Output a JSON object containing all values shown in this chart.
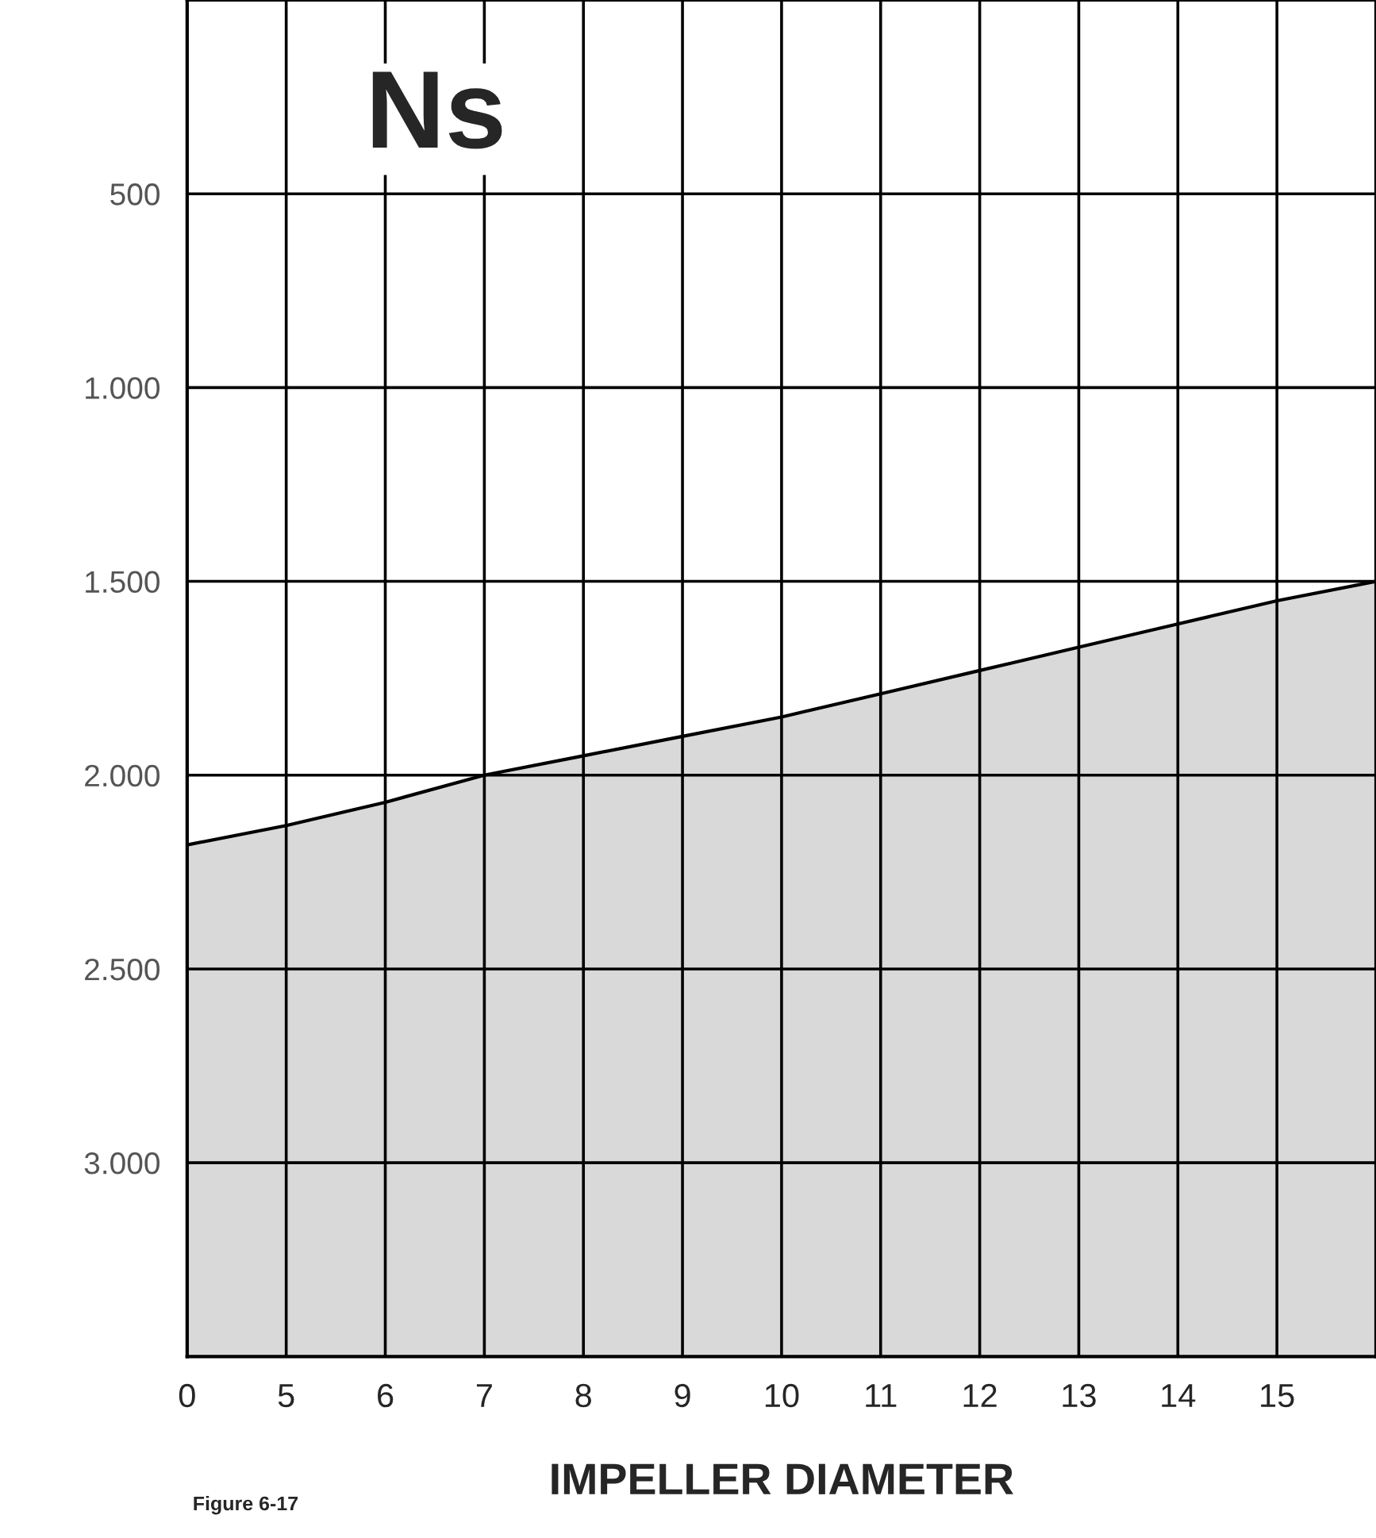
{
  "chart_data": {
    "type": "line",
    "title": "Ns",
    "xlabel": "IMPELLER DIAMETER",
    "annotations": [
      "Figure 6-17"
    ],
    "categories": [
      "0",
      "5",
      "6",
      "7",
      "8",
      "9",
      "10",
      "11",
      "12",
      "13",
      "14",
      "15",
      null
    ],
    "series": [
      {
        "color": "#000000",
        "values": [
          2180,
          2130,
          2070,
          2000,
          1950,
          1900,
          1850,
          1790,
          1730,
          1670,
          1610,
          1550,
          1500
        ],
        "lower": [
          2180,
          2130,
          2070,
          2000,
          1950,
          1900,
          1850,
          1790,
          1730,
          1670,
          1610,
          1550,
          1500
        ],
        "upper": [
          3500,
          3500,
          3500,
          3500,
          3500,
          3500,
          3500,
          3500,
          3500,
          3500,
          3500,
          3500,
          3500
        ]
      }
    ],
    "ylim": [
      3500,
      0
    ],
    "yticks": [
      500,
      {
        "value": 1000,
        "label": "1.000"
      },
      {
        "value": 1500,
        "label": "1.500"
      },
      {
        "value": 2000,
        "label": "2.000"
      },
      {
        "value": 2500,
        "label": "2.500"
      },
      {
        "value": 3000,
        "label": "3.000"
      }
    ],
    "grid": true,
    "legend": false
  }
}
